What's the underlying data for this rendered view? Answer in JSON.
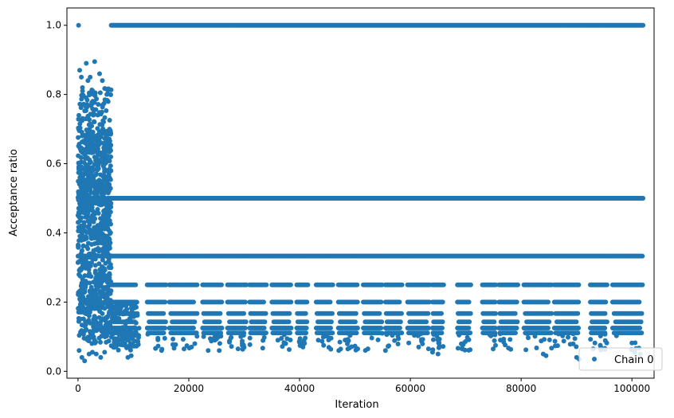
{
  "chart_data": {
    "type": "scatter",
    "title": "",
    "xlabel": "Iteration",
    "ylabel": "Acceptance ratio",
    "xlim": [
      -2000,
      104000
    ],
    "ylim": [
      -0.02,
      1.05
    ],
    "xticks": [
      0,
      20000,
      40000,
      60000,
      80000,
      100000
    ],
    "xtick_labels": [
      "0",
      "20000",
      "40000",
      "60000",
      "80000",
      "100000"
    ],
    "yticks": [
      0.0,
      0.2,
      0.4,
      0.6,
      0.8,
      1.0
    ],
    "ytick_labels": [
      "0.0",
      "0.2",
      "0.4",
      "0.6",
      "0.8",
      "1.0"
    ],
    "grid": false,
    "legend_position": "lower-right",
    "color": "#1f77b4",
    "series": [
      {
        "name": "Chain 0",
        "marker": "o",
        "description_bands": {
          "burn_in_x_range": [
            0,
            6000
          ],
          "burn_in_y_range": [
            0.03,
            0.9
          ],
          "plateau_levels": [
            1.0,
            0.5,
            0.333,
            0.25,
            0.2,
            0.167,
            0.143,
            0.125,
            0.111
          ],
          "plateau_x_range": [
            6000,
            102000
          ]
        },
        "points": [
          [
            100,
            1.0
          ],
          [
            300,
            0.87
          ],
          [
            600,
            0.85
          ],
          [
            1500,
            0.89
          ],
          [
            2200,
            0.85
          ],
          [
            3000,
            0.895
          ],
          [
            3900,
            0.86
          ],
          [
            5200,
            0.8
          ],
          [
            800,
            0.82
          ],
          [
            1800,
            0.84
          ],
          [
            4400,
            0.84
          ],
          [
            200,
            0.06
          ],
          [
            700,
            0.04
          ],
          [
            1200,
            0.03
          ],
          [
            2000,
            0.05
          ],
          [
            2600,
            0.055
          ],
          [
            3300,
            0.05
          ],
          [
            4100,
            0.04
          ],
          [
            4800,
            0.055
          ],
          [
            9000,
            0.04
          ],
          [
            9600,
            0.045
          ],
          [
            20500,
            0.07
          ],
          [
            23500,
            0.06
          ],
          [
            25500,
            0.06
          ],
          [
            37500,
            0.08
          ],
          [
            50500,
            0.065
          ],
          [
            55500,
            0.06
          ],
          [
            61500,
            0.07
          ],
          [
            64000,
            0.055
          ],
          [
            65000,
            0.05
          ],
          [
            84000,
            0.05
          ],
          [
            84500,
            0.045
          ],
          [
            90000,
            0.04
          ],
          [
            90500,
            0.035
          ],
          [
            100500,
            0.055
          ],
          [
            101500,
            0.05
          ]
        ]
      }
    ]
  }
}
